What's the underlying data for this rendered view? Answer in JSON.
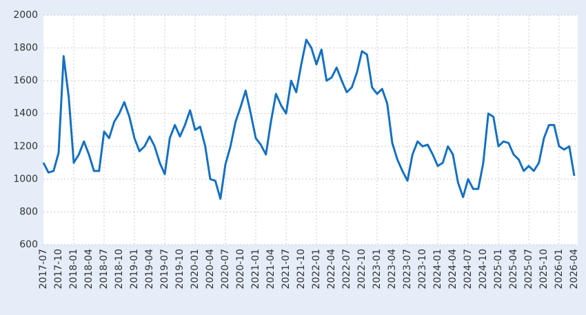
{
  "chart_data": {
    "type": "line",
    "categories": [
      "2017-07",
      null,
      null,
      "2017-10",
      null,
      null,
      "2018-01",
      null,
      null,
      "2018-04",
      null,
      null,
      "2018-07",
      null,
      null,
      "2018-10",
      null,
      null,
      "2019-01",
      null,
      null,
      "2019-04",
      null,
      null,
      "2019-07",
      null,
      null,
      "2019-10",
      null,
      null,
      "2020-01",
      null,
      null,
      "2020-04",
      null,
      null,
      "2020-07",
      null,
      null,
      "2020-10",
      null,
      null,
      "2021-01",
      null,
      null,
      "2021-04",
      null,
      null,
      "2021-07",
      null,
      null,
      "2021-10",
      null,
      null,
      "2022-01",
      null,
      null,
      "2022-04",
      null,
      null,
      "2022-07",
      null,
      null,
      "2022-10",
      null,
      null,
      "2023-01",
      null,
      null,
      "2023-04",
      null,
      null,
      "2023-07",
      null,
      null,
      "2023-10",
      null,
      null,
      "2024-01",
      null,
      null,
      "2024-04",
      null,
      null,
      "2024-07",
      null,
      null,
      "2024-10",
      null,
      null,
      "2025-01",
      null,
      null,
      "2025-04",
      null,
      null,
      "2025-07",
      null,
      null,
      "2025-10",
      null,
      null,
      "2026-01",
      null,
      null,
      "2026-04"
    ],
    "values": [
      1100,
      1040,
      1050,
      1160,
      1750,
      1500,
      1100,
      1150,
      1230,
      1150,
      1050,
      1050,
      1290,
      1250,
      1350,
      1400,
      1470,
      1380,
      1250,
      1170,
      1200,
      1260,
      1200,
      1100,
      1030,
      1250,
      1330,
      1260,
      1330,
      1420,
      1300,
      1320,
      1200,
      1000,
      990,
      880,
      1090,
      1200,
      1350,
      1440,
      1540,
      1400,
      1250,
      1210,
      1150,
      1350,
      1520,
      1450,
      1400,
      1600,
      1530,
      1700,
      1850,
      1800,
      1700,
      1790,
      1600,
      1620,
      1680,
      1600,
      1530,
      1560,
      1650,
      1780,
      1760,
      1560,
      1520,
      1550,
      1460,
      1220,
      1120,
      1050,
      990,
      1150,
      1230,
      1200,
      1210,
      1150,
      1080,
      1100,
      1200,
      1150,
      980,
      890,
      1000,
      940,
      940,
      1100,
      1400,
      1380,
      1200,
      1230,
      1220,
      1150,
      1120,
      1050,
      1080,
      1050,
      1100,
      1250,
      1330,
      1330,
      1200,
      1180,
      1200,
      1020
    ],
    "color": "#1570c0",
    "ylim": [
      600,
      2000
    ],
    "yticks": [
      600,
      800,
      1000,
      1200,
      1400,
      1600,
      1800,
      2000
    ],
    "grid": true
  }
}
